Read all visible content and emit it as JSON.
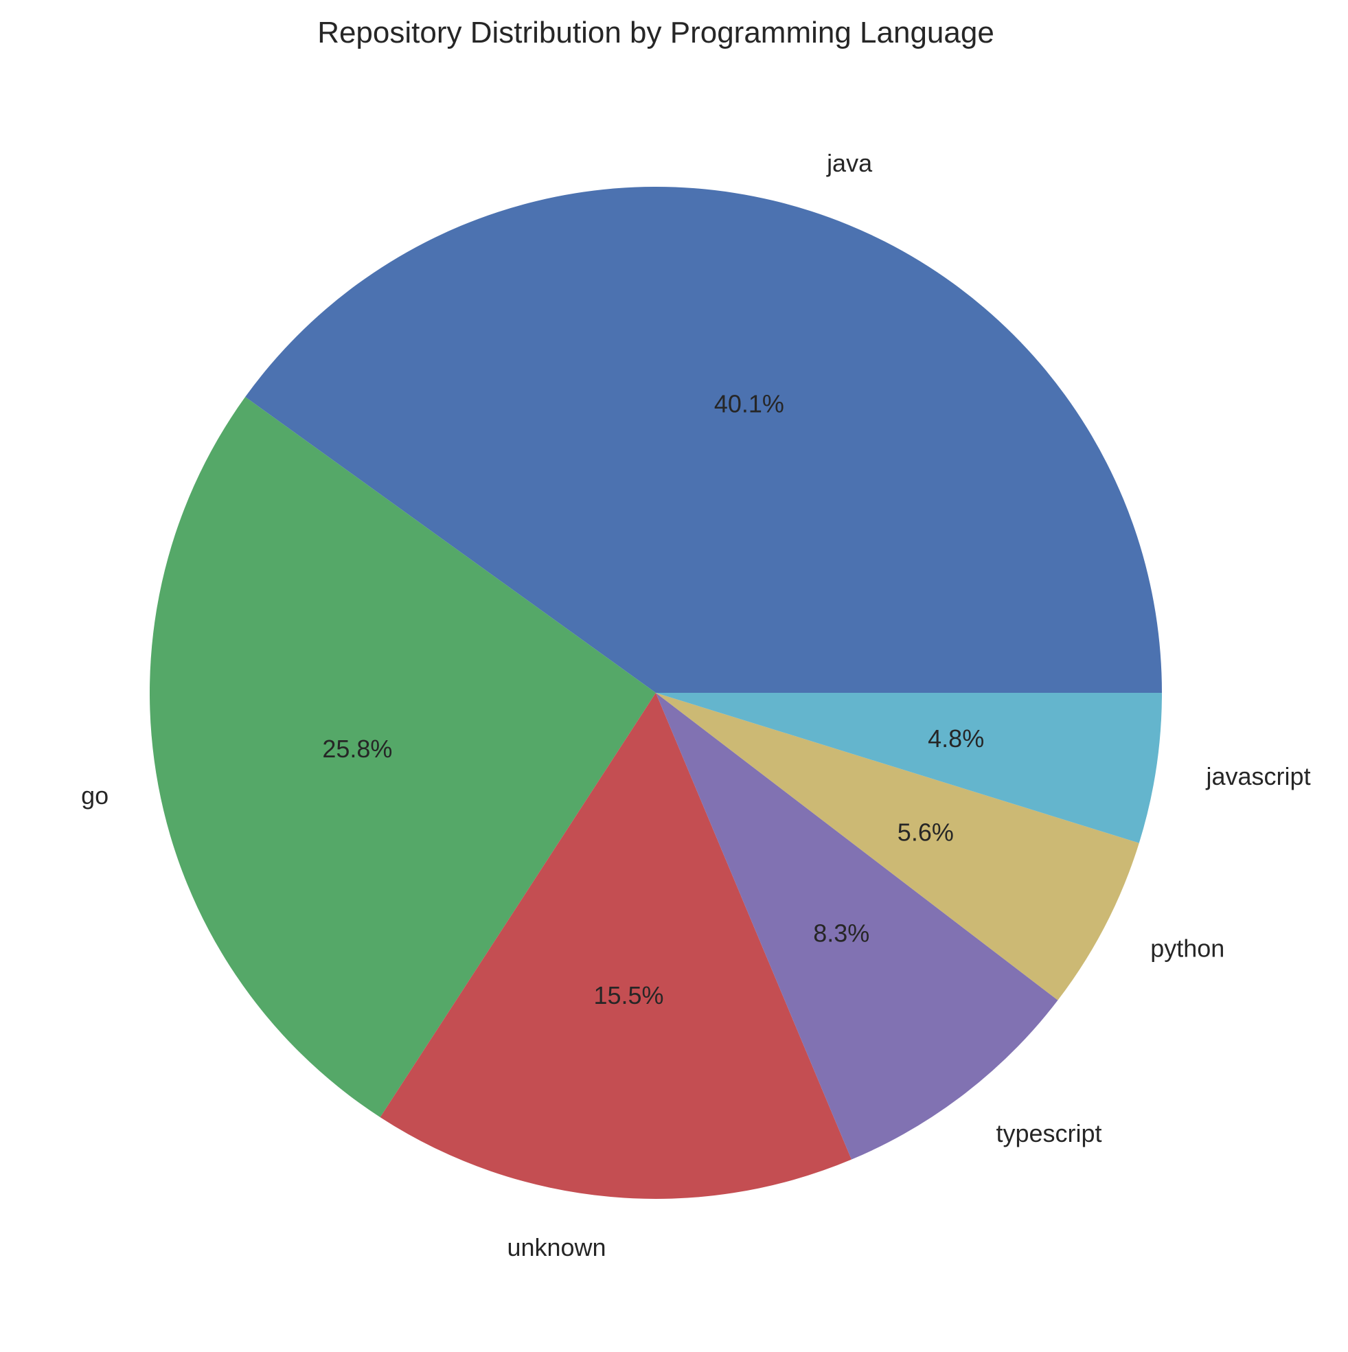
{
  "chart_data": {
    "type": "pie",
    "title": "Repository Distribution by Programming Language",
    "start_angle": "0 degrees (3 o'clock), counter-clockwise",
    "slices": [
      {
        "label": "java",
        "value": 40.1,
        "pct_label": "40.1%",
        "color": "#4C72B0"
      },
      {
        "label": "go",
        "value": 25.8,
        "pct_label": "25.8%",
        "color": "#55A868"
      },
      {
        "label": "unknown",
        "value": 15.5,
        "pct_label": "15.5%",
        "color": "#C44E52"
      },
      {
        "label": "typescript",
        "value": 8.3,
        "pct_label": "8.3%",
        "color": "#8172B2"
      },
      {
        "label": "python",
        "value": 5.6,
        "pct_label": "5.6%",
        "color": "#CCB974"
      },
      {
        "label": "javascript",
        "value": 4.8,
        "pct_label": "4.8%",
        "color": "#64B5CD"
      }
    ]
  }
}
